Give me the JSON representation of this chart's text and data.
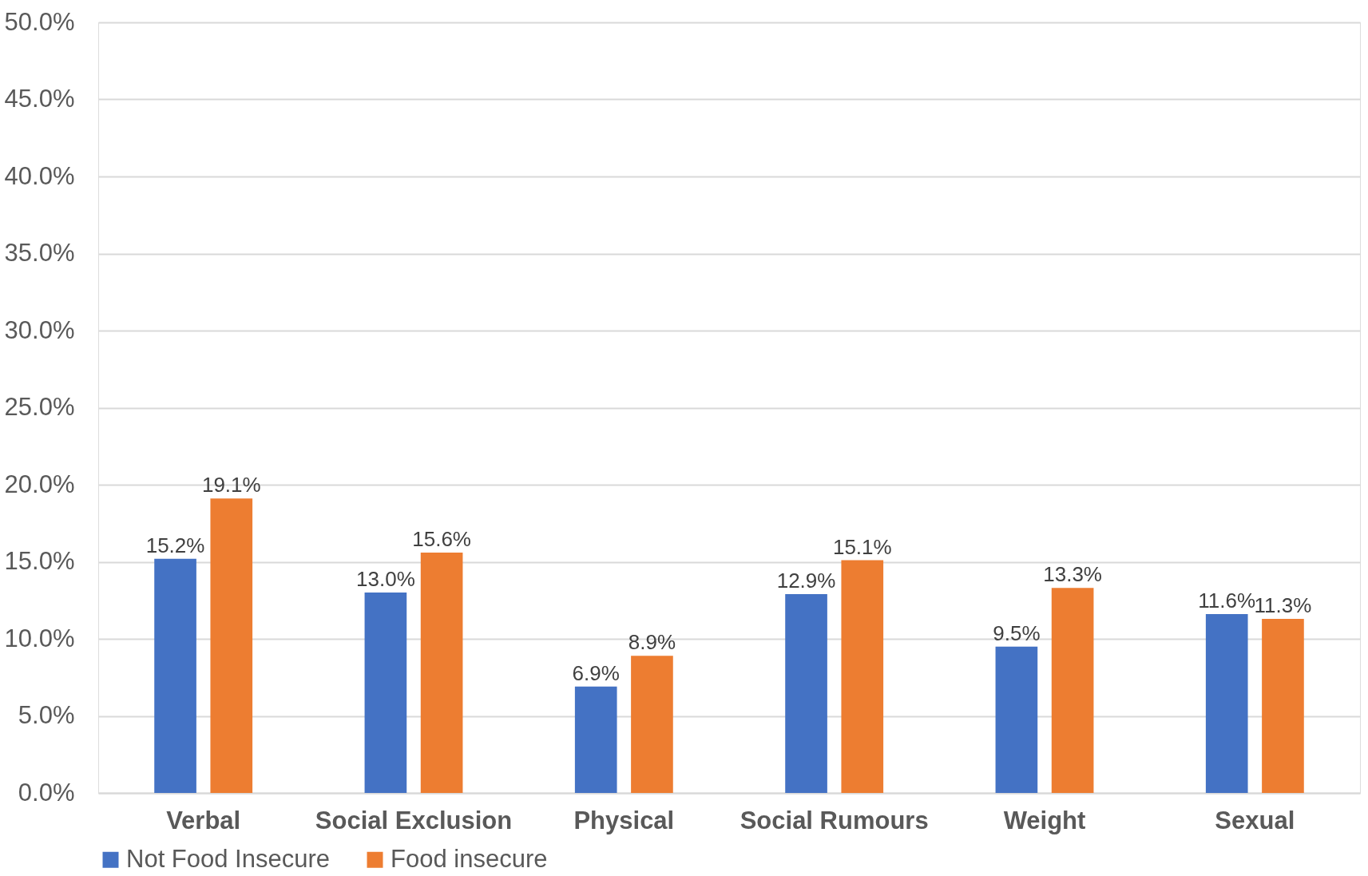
{
  "chart_data": {
    "type": "bar",
    "categories": [
      "Verbal",
      "Social Exclusion",
      "Physical",
      "Social Rumours",
      "Weight",
      "Sexual"
    ],
    "series": [
      {
        "name": "Not Food Insecure",
        "color": "#4472c4",
        "values": [
          15.2,
          13.0,
          6.9,
          12.9,
          9.5,
          11.6
        ],
        "value_labels": [
          "15.2%",
          "13.0%",
          "6.9%",
          "12.9%",
          "9.5%",
          "11.6%"
        ]
      },
      {
        "name": "Food insecure",
        "color": "#ed7d31",
        "values": [
          19.1,
          15.6,
          8.9,
          15.1,
          13.3,
          11.3
        ],
        "value_labels": [
          "19.1%",
          "15.6%",
          "8.9%",
          "15.1%",
          "13.3%",
          "11.3%"
        ]
      }
    ],
    "ylim": [
      0,
      50
    ],
    "yticks": [
      {
        "value": 0,
        "label": "0.0%"
      },
      {
        "value": 5,
        "label": "5.0%"
      },
      {
        "value": 10,
        "label": "10.0%"
      },
      {
        "value": 15,
        "label": "15.0%"
      },
      {
        "value": 20,
        "label": "20.0%"
      },
      {
        "value": 25,
        "label": "25.0%"
      },
      {
        "value": 30,
        "label": "30.0%"
      },
      {
        "value": 35,
        "label": "35.0%"
      },
      {
        "value": 40,
        "label": "40.0%"
      },
      {
        "value": 45,
        "label": "45.0%"
      },
      {
        "value": 50,
        "label": "50.0%"
      }
    ],
    "grid": "y",
    "legend": "bottom"
  }
}
